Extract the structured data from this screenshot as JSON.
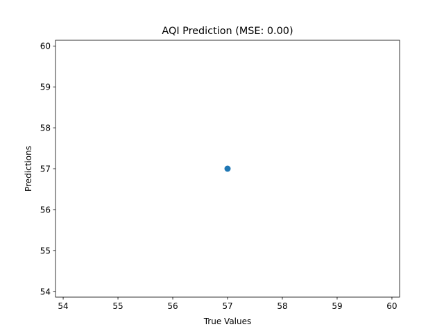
{
  "chart_data": {
    "type": "scatter",
    "title": "AQI Prediction (MSE: 0.00)",
    "xlabel": "True Values",
    "ylabel": "Predictions",
    "xlim": [
      53.86,
      60.14
    ],
    "ylim": [
      53.86,
      60.14
    ],
    "xticks": [
      54,
      55,
      56,
      57,
      58,
      59,
      60
    ],
    "yticks": [
      54,
      55,
      56,
      57,
      58,
      59,
      60
    ],
    "grid": false,
    "series": [
      {
        "name": "predictions",
        "color": "#1f77b4",
        "points": [
          {
            "x": 57,
            "y": 57
          }
        ]
      }
    ]
  }
}
